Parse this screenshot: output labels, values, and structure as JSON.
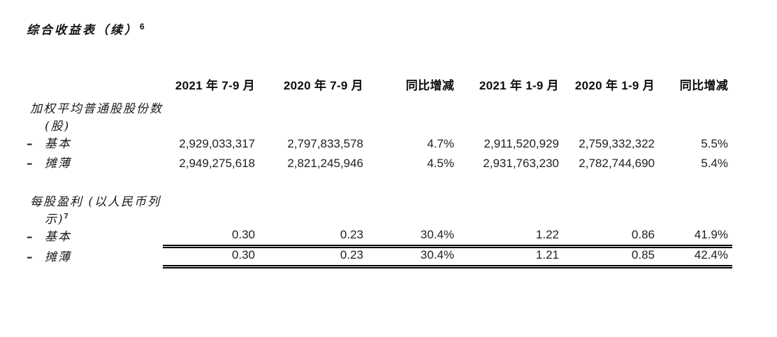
{
  "page": {
    "title": "综合收益表（续）",
    "title_superscript": "6"
  },
  "colors": {
    "background": "#ffffff",
    "text": "#161616",
    "rule": "#000000"
  },
  "table": {
    "column_headers": [
      "2021 年 7-9 月",
      "2020 年 7-9 月",
      "同比增减",
      "2021 年 1-9 月",
      "2020 年 1-9 月",
      "同比增减"
    ],
    "sections": [
      {
        "heading_line1": "加权平均普通股股份数",
        "heading_line2": "(股)",
        "rows": [
          {
            "dash": "–",
            "label": "基本",
            "values": [
              "2,929,033,317",
              "2,797,833,578",
              "4.7%",
              "2,911,520,929",
              "2,759,332,322",
              "5.5%"
            ]
          },
          {
            "dash": "–",
            "label": "摊薄",
            "values": [
              "2,949,275,618",
              "2,821,245,946",
              "4.5%",
              "2,931,763,230",
              "2,782,744,690",
              "5.4%"
            ]
          }
        ]
      },
      {
        "heading_line1": "每股盈利 (以人民币列",
        "heading_line2": "示)",
        "heading_superscript": "7",
        "rows": [
          {
            "dash": "–",
            "label": "基本",
            "values": [
              "0.30",
              "0.23",
              "30.4%",
              "1.22",
              "0.86",
              "41.9%"
            ]
          },
          {
            "dash": "–",
            "label": "摊薄",
            "values": [
              "0.30",
              "0.23",
              "30.4%",
              "1.21",
              "0.85",
              "42.4%"
            ]
          }
        ]
      }
    ]
  }
}
